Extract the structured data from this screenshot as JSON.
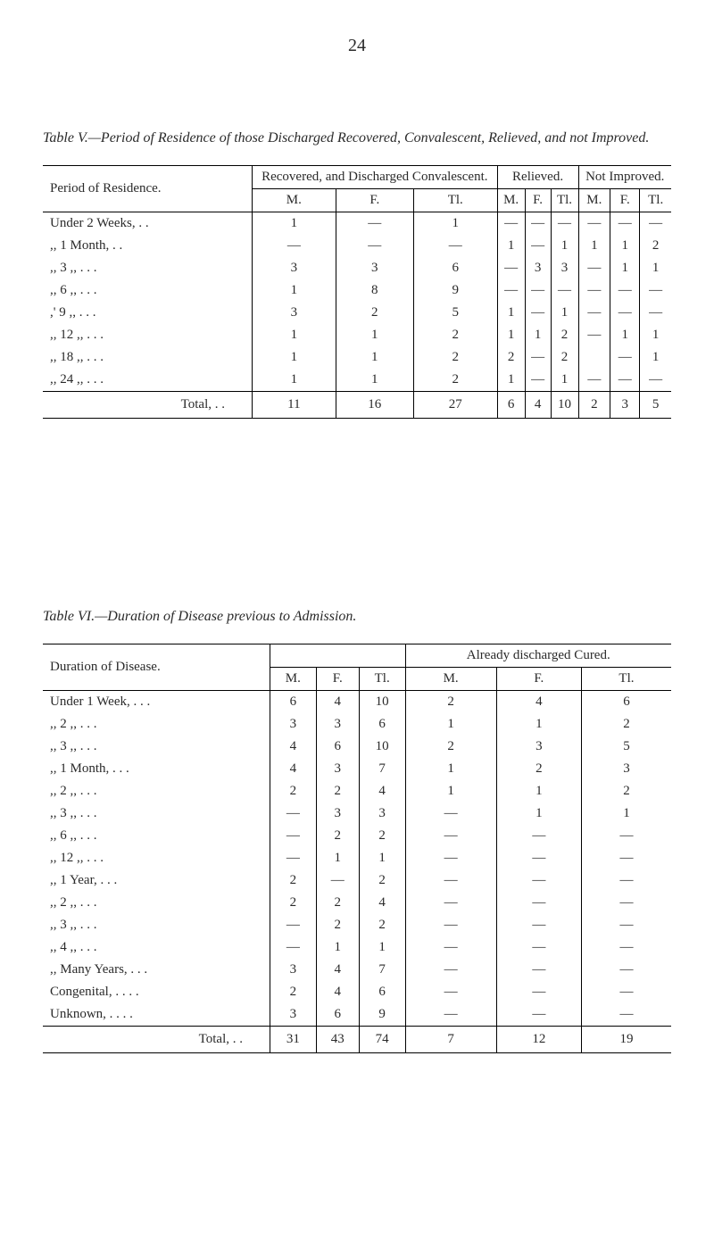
{
  "page_number": "24",
  "table_v": {
    "title_html": "Table V.—Period of Residence of those Discharged Recovered, Convalescent, Relieved, and not Improved.",
    "header_main": [
      "Period of Residence.",
      "Recovered, and Discharged Convalescent.",
      "Relieved.",
      "Not Improved."
    ],
    "sub": [
      "M.",
      "F.",
      "Tl."
    ],
    "rows": [
      {
        "label": "Under 2 Weeks,",
        "dots": ". .",
        "a": [
          "1",
          "—",
          "1"
        ],
        "b": [
          "—",
          "—",
          "—"
        ],
        "c": [
          "—",
          "—",
          "—"
        ]
      },
      {
        "label": ",, 1 Month,",
        "dots": ". .",
        "a": [
          "—",
          "—",
          "—"
        ],
        "b": [
          "1",
          "—",
          "1"
        ],
        "c": [
          "1",
          "1",
          "2"
        ]
      },
      {
        "label": ",, 3 ,,",
        "dots": ". . .",
        "a": [
          "3",
          "3",
          "6"
        ],
        "b": [
          "—",
          "3",
          "3"
        ],
        "c": [
          "—",
          "1",
          "1"
        ]
      },
      {
        "label": ",, 6 ,,",
        "dots": ". . .",
        "a": [
          "1",
          "8",
          "9"
        ],
        "b": [
          "—",
          "—",
          "—"
        ],
        "c": [
          "—",
          "—",
          "—"
        ]
      },
      {
        "label": ",' 9 ,,",
        "dots": ". . .",
        "a": [
          "3",
          "2",
          "5"
        ],
        "b": [
          "1",
          "—",
          "1"
        ],
        "c": [
          "—",
          "—",
          "—"
        ]
      },
      {
        "label": ",, 12 ,,",
        "dots": ". . .",
        "a": [
          "1",
          "1",
          "2"
        ],
        "b": [
          "1",
          "1",
          "2"
        ],
        "c": [
          "—",
          "1",
          "1"
        ]
      },
      {
        "label": ",, 18 ,,",
        "dots": ". . .",
        "a": [
          "1",
          "1",
          "2"
        ],
        "b": [
          "2",
          "—",
          "2"
        ],
        "c": [
          "",
          "—",
          "1"
        ]
      },
      {
        "label": ",, 24 ,,",
        "dots": ". . .",
        "a": [
          "1",
          "1",
          "2"
        ],
        "b": [
          "1",
          "—",
          "1"
        ],
        "c": [
          "—",
          "—",
          "—"
        ]
      }
    ],
    "total_label": "Total, . .",
    "total": {
      "a": [
        "11",
        "16",
        "27"
      ],
      "b": [
        "6",
        "4",
        "10"
      ],
      "c": [
        "2",
        "3",
        "5"
      ]
    }
  },
  "table_vi": {
    "title_html": "Table VI.—Duration of Disease previous to Admission.",
    "header_main": [
      "Duration of Disease.",
      "",
      "Already discharged Cured."
    ],
    "sub": [
      "M.",
      "F.",
      "Tl."
    ],
    "rows": [
      {
        "label": "Under 1 Week,",
        "dots": ". . .",
        "a": [
          "6",
          "4",
          "10"
        ],
        "b": [
          "2",
          "4",
          "6"
        ]
      },
      {
        "label": ",, 2 ,,",
        "dots": ". . .",
        "a": [
          "3",
          "3",
          "6"
        ],
        "b": [
          "1",
          "1",
          "2"
        ]
      },
      {
        "label": ",, 3 ,,",
        "dots": ". . .",
        "a": [
          "4",
          "6",
          "10"
        ],
        "b": [
          "2",
          "3",
          "5"
        ]
      },
      {
        "label": ",, 1 Month,",
        "dots": ". . .",
        "a": [
          "4",
          "3",
          "7"
        ],
        "b": [
          "1",
          "2",
          "3"
        ]
      },
      {
        "label": ",, 2 ,,",
        "dots": ". . .",
        "a": [
          "2",
          "2",
          "4"
        ],
        "b": [
          "1",
          "1",
          "2"
        ]
      },
      {
        "label": ",, 3 ,,",
        "dots": ". . .",
        "a": [
          "—",
          "3",
          "3"
        ],
        "b": [
          "—",
          "1",
          "1"
        ]
      },
      {
        "label": ",, 6 ,,",
        "dots": ". . .",
        "a": [
          "—",
          "2",
          "2"
        ],
        "b": [
          "—",
          "—",
          "—"
        ]
      },
      {
        "label": ",, 12 ,,",
        "dots": ". . .",
        "a": [
          "—",
          "1",
          "1"
        ],
        "b": [
          "—",
          "—",
          "—"
        ]
      },
      {
        "label": ",, 1 Year,",
        "dots": ". . .",
        "a": [
          "2",
          "—",
          "2"
        ],
        "b": [
          "—",
          "—",
          "—"
        ]
      },
      {
        "label": ",, 2 ,,",
        "dots": ". . .",
        "a": [
          "2",
          "2",
          "4"
        ],
        "b": [
          "—",
          "—",
          "—"
        ]
      },
      {
        "label": ",, 3 ,,",
        "dots": ". . .",
        "a": [
          "—",
          "2",
          "2"
        ],
        "b": [
          "—",
          "—",
          "—"
        ]
      },
      {
        "label": ",, 4 ,,",
        "dots": ". . .",
        "a": [
          "—",
          "1",
          "1"
        ],
        "b": [
          "—",
          "—",
          "—"
        ]
      },
      {
        "label": ",, Many Years,",
        "dots": ". . .",
        "a": [
          "3",
          "4",
          "7"
        ],
        "b": [
          "—",
          "—",
          "—"
        ]
      },
      {
        "label": "Congenital,",
        "dots": ". . . .",
        "a": [
          "2",
          "4",
          "6"
        ],
        "b": [
          "—",
          "—",
          "—"
        ]
      },
      {
        "label": "Unknown,",
        "dots": ". . . .",
        "a": [
          "3",
          "6",
          "9"
        ],
        "b": [
          "—",
          "—",
          "—"
        ]
      }
    ],
    "total_label": "Total, . .",
    "total": {
      "a": [
        "31",
        "43",
        "74"
      ],
      "b": [
        "7",
        "12",
        "19"
      ]
    }
  }
}
